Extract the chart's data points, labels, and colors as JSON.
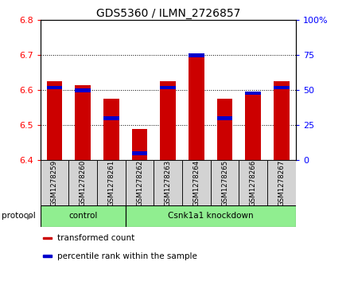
{
  "title": "GDS5360 / ILMN_2726857",
  "samples": [
    "GSM1278259",
    "GSM1278260",
    "GSM1278261",
    "GSM1278262",
    "GSM1278263",
    "GSM1278264",
    "GSM1278265",
    "GSM1278266",
    "GSM1278267"
  ],
  "transformed_counts": [
    6.625,
    6.615,
    6.575,
    6.49,
    6.625,
    6.7,
    6.575,
    6.595,
    6.625
  ],
  "percentile_ranks": [
    52,
    50,
    30,
    5,
    52,
    75,
    30,
    48,
    52
  ],
  "ylim_left": [
    6.4,
    6.8
  ],
  "ylim_right": [
    0,
    100
  ],
  "yticks_left": [
    6.4,
    6.5,
    6.6,
    6.7,
    6.8
  ],
  "yticks_right": [
    0,
    25,
    50,
    75,
    100
  ],
  "bar_color_red": "#cc0000",
  "bar_color_blue": "#0000cc",
  "ctrl_indices": [
    0,
    1,
    2
  ],
  "kd_indices": [
    3,
    4,
    5,
    6,
    7,
    8
  ],
  "ctrl_label": "control",
  "kd_label": "Csnk1a1 knockdown",
  "group_color": "#90ee90",
  "sample_box_color": "#d3d3d3",
  "protocol_label": "protocol",
  "legend_items": [
    {
      "label": "transformed count",
      "color": "#cc0000"
    },
    {
      "label": "percentile rank within the sample",
      "color": "#0000cc"
    }
  ],
  "tick_fontsize": 8,
  "title_fontsize": 10,
  "bar_width": 0.55,
  "background_color": "#ffffff"
}
